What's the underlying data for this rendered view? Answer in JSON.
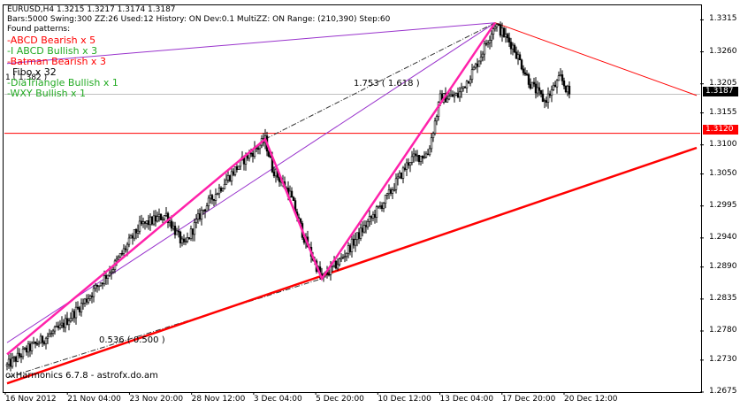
{
  "header": {
    "symbol_line": "EURUSD,H4  1.3215 1.3217 1.3174 1.3187",
    "info_line": "Bars:5000  Swing:300  ZZ:26  Used:12  History: ON Dev:0.1  MultiZZ: ON  Range: (210,390)  Step:60",
    "found_label": "Found patterns:"
  },
  "patterns": [
    {
      "text": "-ABCD Bearish x 5",
      "kind": "bear"
    },
    {
      "text": "-I ABCD Bullish x 3",
      "kind": "bull"
    },
    {
      "text": "-Batman Bearish x 3",
      "kind": "bear"
    },
    {
      "text": "-DiaTriangle Bullish x 1",
      "kind": "bull"
    },
    {
      "text": "-WXY Bullish x 1",
      "kind": "bull"
    }
  ],
  "fibo_label": "Fibo x 32",
  "fibo_sub": "1 ( 1.382 )",
  "ratio_top": "1.753 ( 1.618 )",
  "ratio_bottom": "0.536 ( 0.500 )",
  "watermark": "oxHarmonics 6.7.8 - astrofx.do.am",
  "price_tags": {
    "current": "1.3187",
    "level": "1.3120"
  },
  "colors": {
    "pink": "#ff22aa",
    "red": "#ff0000",
    "purple": "#9933cc",
    "grid_line": "#c0c0c0",
    "candle": "#000000"
  },
  "chart_data": {
    "type": "candlestick",
    "symbol": "EURUSD",
    "timeframe": "H4",
    "ylim": [
      1.2675,
      1.334
    ],
    "y_ticks": [
      1.3315,
      1.326,
      1.3205,
      1.3155,
      1.31,
      1.305,
      1.2995,
      1.294,
      1.289,
      1.2835,
      1.278,
      1.273,
      1.2675
    ],
    "x_tick_labels": [
      "16 Nov 2012",
      "21 Nov 04:00",
      "23 Nov 20:00",
      "28 Nov 12:00",
      "3 Dec 04:00",
      "5 Dec 20:00",
      "10 Dec 12:00",
      "13 Dec 04:00",
      "17 Dec 20:00",
      "20 Dec 12:00"
    ],
    "last_price": 1.3187,
    "level_price": 1.312,
    "anchors": [
      {
        "x": 0,
        "p": 1.272
      },
      {
        "x": 10,
        "p": 1.2745
      },
      {
        "x": 30,
        "p": 1.2785
      },
      {
        "x": 45,
        "p": 1.2835
      },
      {
        "x": 60,
        "p": 1.289
      },
      {
        "x": 75,
        "p": 1.296
      },
      {
        "x": 90,
        "p": 1.298
      },
      {
        "x": 100,
        "p": 1.2925
      },
      {
        "x": 110,
        "p": 1.2985
      },
      {
        "x": 124,
        "p": 1.304
      },
      {
        "x": 134,
        "p": 1.3075
      },
      {
        "x": 146,
        "p": 1.3108
      },
      {
        "x": 150,
        "p": 1.306
      },
      {
        "x": 160,
        "p": 1.3015
      },
      {
        "x": 168,
        "p": 1.294
      },
      {
        "x": 178,
        "p": 1.287
      },
      {
        "x": 188,
        "p": 1.29
      },
      {
        "x": 200,
        "p": 1.295
      },
      {
        "x": 215,
        "p": 1.301
      },
      {
        "x": 228,
        "p": 1.3075
      },
      {
        "x": 238,
        "p": 1.3085
      },
      {
        "x": 245,
        "p": 1.318
      },
      {
        "x": 255,
        "p": 1.3185
      },
      {
        "x": 265,
        "p": 1.3235
      },
      {
        "x": 276,
        "p": 1.3308
      },
      {
        "x": 286,
        "p": 1.327
      },
      {
        "x": 296,
        "p": 1.3205
      },
      {
        "x": 304,
        "p": 1.3175
      },
      {
        "x": 313,
        "p": 1.3215
      },
      {
        "x": 318,
        "p": 1.3187
      }
    ],
    "bar_count": 319,
    "zigzag": [
      {
        "x": 0,
        "p": 1.274
      },
      {
        "x": 146,
        "p": 1.311
      },
      {
        "x": 178,
        "p": 1.287
      },
      {
        "x": 276,
        "p": 1.331
      }
    ],
    "thick_trendline": [
      {
        "x": 0,
        "p": 1.269
      },
      {
        "x": 390,
        "p": 1.3095
      }
    ],
    "thin_trendline": [
      {
        "x": 276,
        "p": 1.331
      },
      {
        "x": 390,
        "p": 1.3185
      }
    ],
    "purple_lines": [
      [
        {
          "x": 0,
          "p": 1.276
        },
        {
          "x": 276,
          "p": 1.331
        }
      ],
      [
        {
          "x": 0,
          "p": 1.324
        },
        {
          "x": 276,
          "p": 1.331
        }
      ]
    ],
    "dashed_lines": [
      [
        {
          "x": 146,
          "p": 1.311
        },
        {
          "x": 276,
          "p": 1.331
        }
      ],
      [
        {
          "x": 0,
          "p": 1.27
        },
        {
          "x": 178,
          "p": 1.287
        }
      ]
    ]
  }
}
